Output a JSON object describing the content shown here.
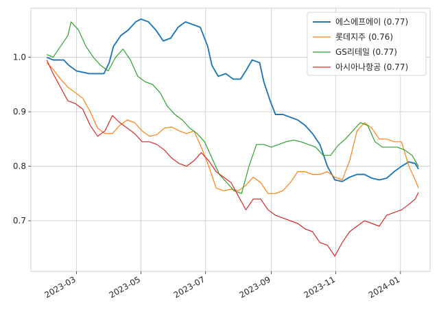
{
  "chart_data": {
    "type": "line",
    "title": "",
    "xlabel": "",
    "ylabel": "",
    "xlim": [
      "2023-01-17",
      "2024-01-29"
    ],
    "ylim": [
      0.607,
      1.09
    ],
    "grid": true,
    "legend_position": "top-right",
    "x_ticks": [
      {
        "date": "2023-03-01",
        "label": "2023-03"
      },
      {
        "date": "2023-05-01",
        "label": "2023-05"
      },
      {
        "date": "2023-07-01",
        "label": "2023-07"
      },
      {
        "date": "2023-09-01",
        "label": "2023-09"
      },
      {
        "date": "2023-11-01",
        "label": "2023-11"
      },
      {
        "date": "2024-01-01",
        "label": "2024-01"
      }
    ],
    "y_ticks": [
      {
        "value": 0.7,
        "label": "0.7"
      },
      {
        "value": 0.8,
        "label": "0.8"
      },
      {
        "value": 0.9,
        "label": "0.9"
      },
      {
        "value": 1.0,
        "label": "1.0"
      }
    ],
    "series": [
      {
        "name": "에스에프에이 (0.77)",
        "color": "#1f77b4",
        "points": [
          [
            "2023-02-01",
            1.0
          ],
          [
            "2023-02-07",
            0.995
          ],
          [
            "2023-02-17",
            0.995
          ],
          [
            "2023-02-22",
            0.985
          ],
          [
            "2023-03-01",
            0.975
          ],
          [
            "2023-03-13",
            0.97
          ],
          [
            "2023-03-27",
            0.97
          ],
          [
            "2023-04-01",
            0.99
          ],
          [
            "2023-04-05",
            1.02
          ],
          [
            "2023-04-12",
            1.04
          ],
          [
            "2023-04-19",
            1.05
          ],
          [
            "2023-04-26",
            1.065
          ],
          [
            "2023-05-01",
            1.07
          ],
          [
            "2023-05-08",
            1.065
          ],
          [
            "2023-05-15",
            1.05
          ],
          [
            "2023-05-22",
            1.03
          ],
          [
            "2023-05-29",
            1.035
          ],
          [
            "2023-06-05",
            1.055
          ],
          [
            "2023-06-12",
            1.065
          ],
          [
            "2023-06-19",
            1.06
          ],
          [
            "2023-06-26",
            1.055
          ],
          [
            "2023-07-03",
            1.02
          ],
          [
            "2023-07-07",
            0.985
          ],
          [
            "2023-07-13",
            0.965
          ],
          [
            "2023-07-20",
            0.97
          ],
          [
            "2023-07-27",
            0.96
          ],
          [
            "2023-08-03",
            0.96
          ],
          [
            "2023-08-08",
            0.975
          ],
          [
            "2023-08-14",
            0.995
          ],
          [
            "2023-08-21",
            0.99
          ],
          [
            "2023-08-25",
            0.955
          ],
          [
            "2023-08-31",
            0.92
          ],
          [
            "2023-09-05",
            0.895
          ],
          [
            "2023-09-12",
            0.895
          ],
          [
            "2023-09-19",
            0.89
          ],
          [
            "2023-09-26",
            0.885
          ],
          [
            "2023-10-03",
            0.875
          ],
          [
            "2023-10-10",
            0.86
          ],
          [
            "2023-10-17",
            0.84
          ],
          [
            "2023-10-24",
            0.8
          ],
          [
            "2023-10-31",
            0.775
          ],
          [
            "2023-11-07",
            0.772
          ],
          [
            "2023-11-14",
            0.78
          ],
          [
            "2023-11-21",
            0.785
          ],
          [
            "2023-11-28",
            0.785
          ],
          [
            "2023-12-05",
            0.778
          ],
          [
            "2023-12-12",
            0.775
          ],
          [
            "2023-12-19",
            0.778
          ],
          [
            "2023-12-26",
            0.79
          ],
          [
            "2024-01-02",
            0.8
          ],
          [
            "2024-01-09",
            0.808
          ],
          [
            "2024-01-15",
            0.805
          ],
          [
            "2024-01-18",
            0.795
          ]
        ]
      },
      {
        "name": "롯데지주 (0.76)",
        "color": "#ff7f0e",
        "points": [
          [
            "2023-02-01",
            0.99
          ],
          [
            "2023-02-07",
            0.978
          ],
          [
            "2023-02-14",
            0.96
          ],
          [
            "2023-02-21",
            0.945
          ],
          [
            "2023-02-28",
            0.935
          ],
          [
            "2023-03-07",
            0.925
          ],
          [
            "2023-03-14",
            0.9
          ],
          [
            "2023-03-21",
            0.87
          ],
          [
            "2023-03-28",
            0.86
          ],
          [
            "2023-04-04",
            0.86
          ],
          [
            "2023-04-11",
            0.875
          ],
          [
            "2023-04-18",
            0.885
          ],
          [
            "2023-04-25",
            0.88
          ],
          [
            "2023-05-02",
            0.865
          ],
          [
            "2023-05-09",
            0.855
          ],
          [
            "2023-05-16",
            0.858
          ],
          [
            "2023-05-23",
            0.87
          ],
          [
            "2023-05-30",
            0.872
          ],
          [
            "2023-06-06",
            0.865
          ],
          [
            "2023-06-13",
            0.86
          ],
          [
            "2023-06-20",
            0.865
          ],
          [
            "2023-06-27",
            0.835
          ],
          [
            "2023-07-04",
            0.8
          ],
          [
            "2023-07-11",
            0.76
          ],
          [
            "2023-07-18",
            0.755
          ],
          [
            "2023-07-25",
            0.758
          ],
          [
            "2023-08-01",
            0.755
          ],
          [
            "2023-08-08",
            0.765
          ],
          [
            "2023-08-15",
            0.78
          ],
          [
            "2023-08-22",
            0.77
          ],
          [
            "2023-08-29",
            0.75
          ],
          [
            "2023-09-05",
            0.75
          ],
          [
            "2023-09-12",
            0.755
          ],
          [
            "2023-09-19",
            0.77
          ],
          [
            "2023-09-26",
            0.79
          ],
          [
            "2023-10-03",
            0.79
          ],
          [
            "2023-10-10",
            0.785
          ],
          [
            "2023-10-17",
            0.785
          ],
          [
            "2023-10-24",
            0.79
          ],
          [
            "2023-10-31",
            0.78
          ],
          [
            "2023-11-07",
            0.775
          ],
          [
            "2023-11-14",
            0.81
          ],
          [
            "2023-11-21",
            0.865
          ],
          [
            "2023-11-28",
            0.88
          ],
          [
            "2023-12-05",
            0.87
          ],
          [
            "2023-12-12",
            0.85
          ],
          [
            "2023-12-19",
            0.85
          ],
          [
            "2023-12-26",
            0.845
          ],
          [
            "2024-01-02",
            0.845
          ],
          [
            "2024-01-09",
            0.8
          ],
          [
            "2024-01-15",
            0.775
          ],
          [
            "2024-01-18",
            0.76
          ]
        ]
      },
      {
        "name": "GS리테일 (0.77)",
        "color": "#2ca02c",
        "points": [
          [
            "2023-02-01",
            1.005
          ],
          [
            "2023-02-07",
            1.0
          ],
          [
            "2023-02-14",
            1.02
          ],
          [
            "2023-02-21",
            1.04
          ],
          [
            "2023-02-24",
            1.065
          ],
          [
            "2023-03-03",
            1.05
          ],
          [
            "2023-03-10",
            1.02
          ],
          [
            "2023-03-17",
            1.0
          ],
          [
            "2023-03-24",
            0.985
          ],
          [
            "2023-03-31",
            0.975
          ],
          [
            "2023-04-07",
            1.0
          ],
          [
            "2023-04-14",
            1.015
          ],
          [
            "2023-04-21",
            0.995
          ],
          [
            "2023-04-28",
            0.965
          ],
          [
            "2023-05-05",
            0.955
          ],
          [
            "2023-05-12",
            0.95
          ],
          [
            "2023-05-19",
            0.935
          ],
          [
            "2023-05-26",
            0.91
          ],
          [
            "2023-06-02",
            0.895
          ],
          [
            "2023-06-09",
            0.885
          ],
          [
            "2023-06-16",
            0.87
          ],
          [
            "2023-06-23",
            0.86
          ],
          [
            "2023-06-30",
            0.845
          ],
          [
            "2023-07-07",
            0.815
          ],
          [
            "2023-07-14",
            0.785
          ],
          [
            "2023-07-21",
            0.77
          ],
          [
            "2023-07-28",
            0.755
          ],
          [
            "2023-08-04",
            0.75
          ],
          [
            "2023-08-11",
            0.8
          ],
          [
            "2023-08-18",
            0.84
          ],
          [
            "2023-08-25",
            0.84
          ],
          [
            "2023-09-01",
            0.835
          ],
          [
            "2023-09-08",
            0.84
          ],
          [
            "2023-09-15",
            0.845
          ],
          [
            "2023-09-22",
            0.848
          ],
          [
            "2023-09-29",
            0.845
          ],
          [
            "2023-10-06",
            0.84
          ],
          [
            "2023-10-13",
            0.835
          ],
          [
            "2023-10-20",
            0.82
          ],
          [
            "2023-10-27",
            0.82
          ],
          [
            "2023-11-03",
            0.838
          ],
          [
            "2023-11-10",
            0.85
          ],
          [
            "2023-11-17",
            0.865
          ],
          [
            "2023-11-24",
            0.88
          ],
          [
            "2023-12-01",
            0.875
          ],
          [
            "2023-12-08",
            0.845
          ],
          [
            "2023-12-15",
            0.835
          ],
          [
            "2023-12-22",
            0.835
          ],
          [
            "2023-12-29",
            0.835
          ],
          [
            "2024-01-05",
            0.83
          ],
          [
            "2024-01-12",
            0.82
          ],
          [
            "2024-01-18",
            0.8
          ]
        ]
      },
      {
        "name": "아시아나항공 (0.77)",
        "color": "#d62728",
        "points": [
          [
            "2023-02-01",
            0.995
          ],
          [
            "2023-02-07",
            0.97
          ],
          [
            "2023-02-14",
            0.945
          ],
          [
            "2023-02-21",
            0.92
          ],
          [
            "2023-02-28",
            0.915
          ],
          [
            "2023-03-07",
            0.905
          ],
          [
            "2023-03-14",
            0.875
          ],
          [
            "2023-03-21",
            0.855
          ],
          [
            "2023-03-28",
            0.865
          ],
          [
            "2023-04-04",
            0.893
          ],
          [
            "2023-04-11",
            0.88
          ],
          [
            "2023-04-18",
            0.87
          ],
          [
            "2023-04-25",
            0.86
          ],
          [
            "2023-05-02",
            0.845
          ],
          [
            "2023-05-09",
            0.845
          ],
          [
            "2023-05-16",
            0.84
          ],
          [
            "2023-05-23",
            0.83
          ],
          [
            "2023-05-30",
            0.815
          ],
          [
            "2023-06-06",
            0.805
          ],
          [
            "2023-06-13",
            0.8
          ],
          [
            "2023-06-20",
            0.81
          ],
          [
            "2023-06-27",
            0.825
          ],
          [
            "2023-07-04",
            0.81
          ],
          [
            "2023-07-11",
            0.79
          ],
          [
            "2023-07-18",
            0.78
          ],
          [
            "2023-07-25",
            0.77
          ],
          [
            "2023-08-01",
            0.745
          ],
          [
            "2023-08-08",
            0.72
          ],
          [
            "2023-08-15",
            0.74
          ],
          [
            "2023-08-22",
            0.74
          ],
          [
            "2023-08-29",
            0.72
          ],
          [
            "2023-09-05",
            0.71
          ],
          [
            "2023-09-12",
            0.705
          ],
          [
            "2023-09-19",
            0.7
          ],
          [
            "2023-09-26",
            0.695
          ],
          [
            "2023-10-03",
            0.685
          ],
          [
            "2023-10-10",
            0.68
          ],
          [
            "2023-10-17",
            0.66
          ],
          [
            "2023-10-24",
            0.655
          ],
          [
            "2023-10-31",
            0.635
          ],
          [
            "2023-11-07",
            0.66
          ],
          [
            "2023-11-14",
            0.68
          ],
          [
            "2023-11-21",
            0.69
          ],
          [
            "2023-11-28",
            0.7
          ],
          [
            "2023-12-05",
            0.695
          ],
          [
            "2023-12-12",
            0.69
          ],
          [
            "2023-12-19",
            0.71
          ],
          [
            "2023-12-26",
            0.715
          ],
          [
            "2024-01-02",
            0.72
          ],
          [
            "2024-01-09",
            0.73
          ],
          [
            "2024-01-15",
            0.74
          ],
          [
            "2024-01-18",
            0.752
          ]
        ]
      }
    ]
  }
}
